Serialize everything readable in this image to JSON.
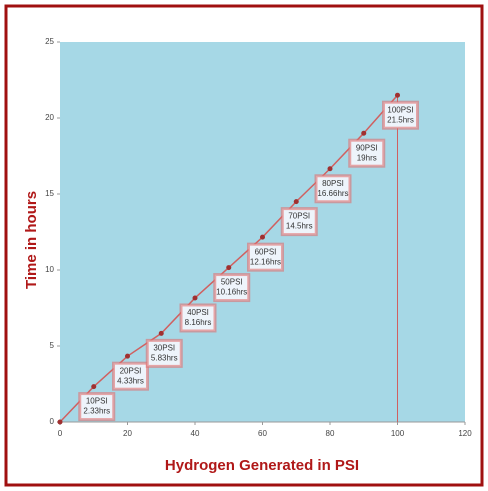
{
  "chart_data": {
    "type": "line",
    "x_label": "Hydrogen Generated in PSI",
    "y_label": "Time in hours",
    "x": [
      0,
      10,
      20,
      30,
      40,
      50,
      60,
      70,
      80,
      90,
      100
    ],
    "series": [
      {
        "color": "#d06060",
        "values": [
          0,
          2.33,
          4.33,
          5.83,
          8.16,
          10.16,
          12.16,
          14.5,
          16.66,
          19,
          21.5
        ],
        "value_labels": [
          null,
          "2.33hrs",
          "4.33hrs",
          "5.83hrs",
          "8.16hrs",
          "10.16hrs",
          "12.16hrs",
          "14.5hrs",
          "16.66hrs",
          "19hrs",
          "21.5hrs"
        ],
        "x_value_labels": [
          null,
          "10PSI",
          "20PSI",
          "30PSI",
          "40PSI",
          "50PSI",
          "60PSI",
          "70PSI",
          "80PSI",
          "90PSI",
          "100PSI"
        ]
      }
    ],
    "xlim": [
      0,
      120
    ],
    "xticks": [
      0,
      20,
      40,
      60,
      80,
      100,
      120
    ],
    "ylim": [
      0,
      25
    ],
    "yticks": [
      0,
      5,
      10,
      15,
      20,
      25
    ]
  }
}
